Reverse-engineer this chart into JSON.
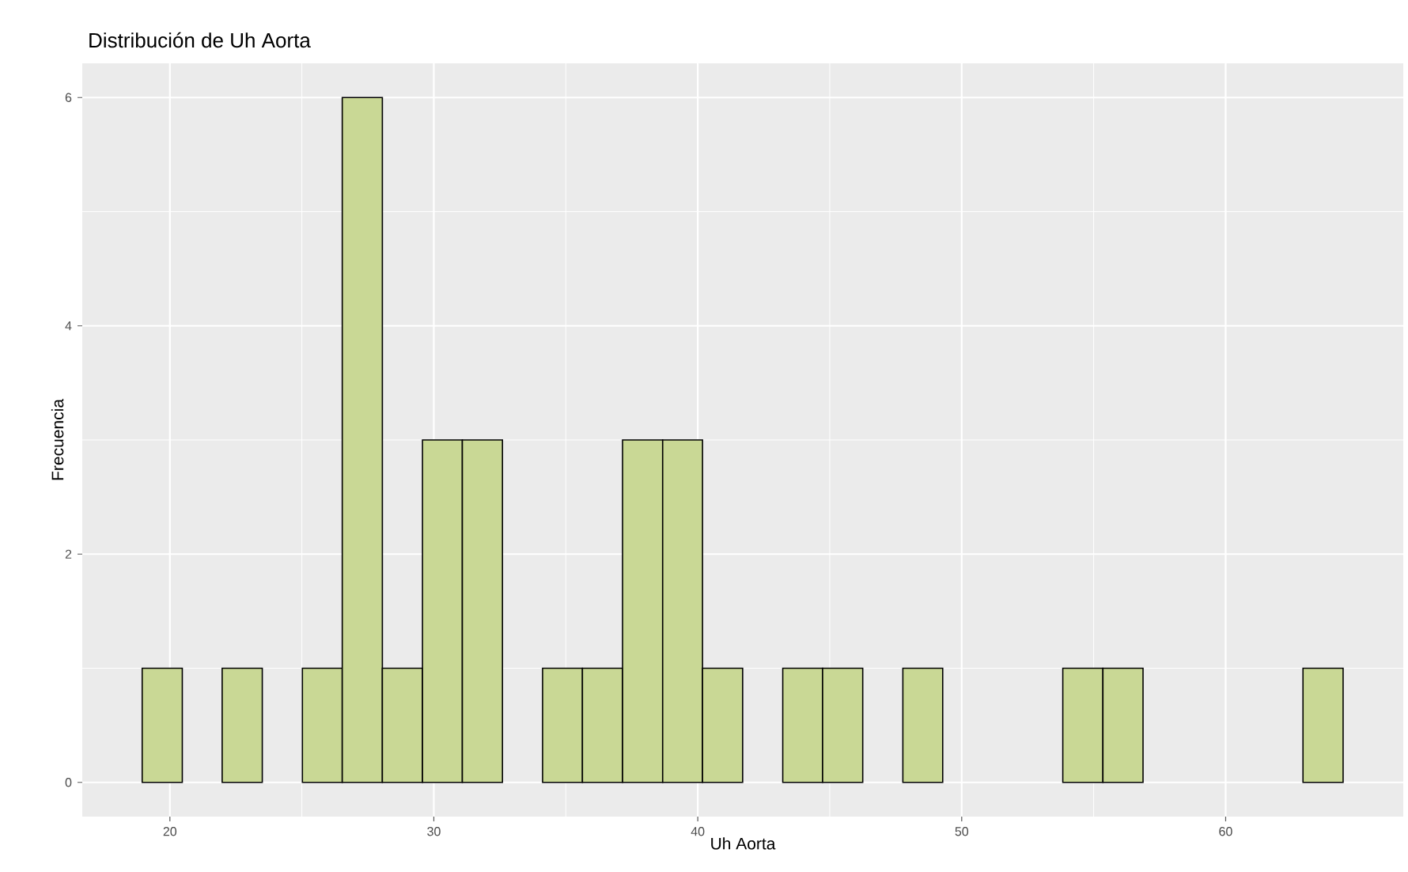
{
  "chart_data": {
    "type": "histogram",
    "title": "Distribución de Uh Aorta",
    "xlabel": "Uh Aorta",
    "ylabel": "Frecuencia",
    "bins": [
      18.95,
      20.47,
      21.98,
      23.5,
      25.02,
      26.53,
      28.05,
      29.57,
      31.08,
      32.6,
      34.12,
      35.63,
      37.15,
      38.67,
      40.18,
      41.7,
      43.22,
      44.73,
      46.25,
      47.77,
      49.28,
      50.8,
      52.32,
      53.83,
      55.35,
      56.87,
      58.38,
      59.9,
      61.42,
      62.93,
      64.45
    ],
    "values": [
      1,
      0,
      1,
      0,
      1,
      6,
      1,
      3,
      3,
      0,
      1,
      1,
      3,
      3,
      1,
      0,
      1,
      1,
      0,
      1,
      0,
      0,
      0,
      1,
      1,
      0,
      0,
      0,
      0,
      1
    ],
    "color": "#c9d895",
    "xlim": [
      16.68,
      66.73
    ],
    "ylim": [
      -0.3,
      6.3
    ],
    "xticks": [
      20,
      30,
      40,
      50,
      60
    ],
    "yticks": [
      0,
      2,
      4,
      6
    ],
    "grid": true
  }
}
